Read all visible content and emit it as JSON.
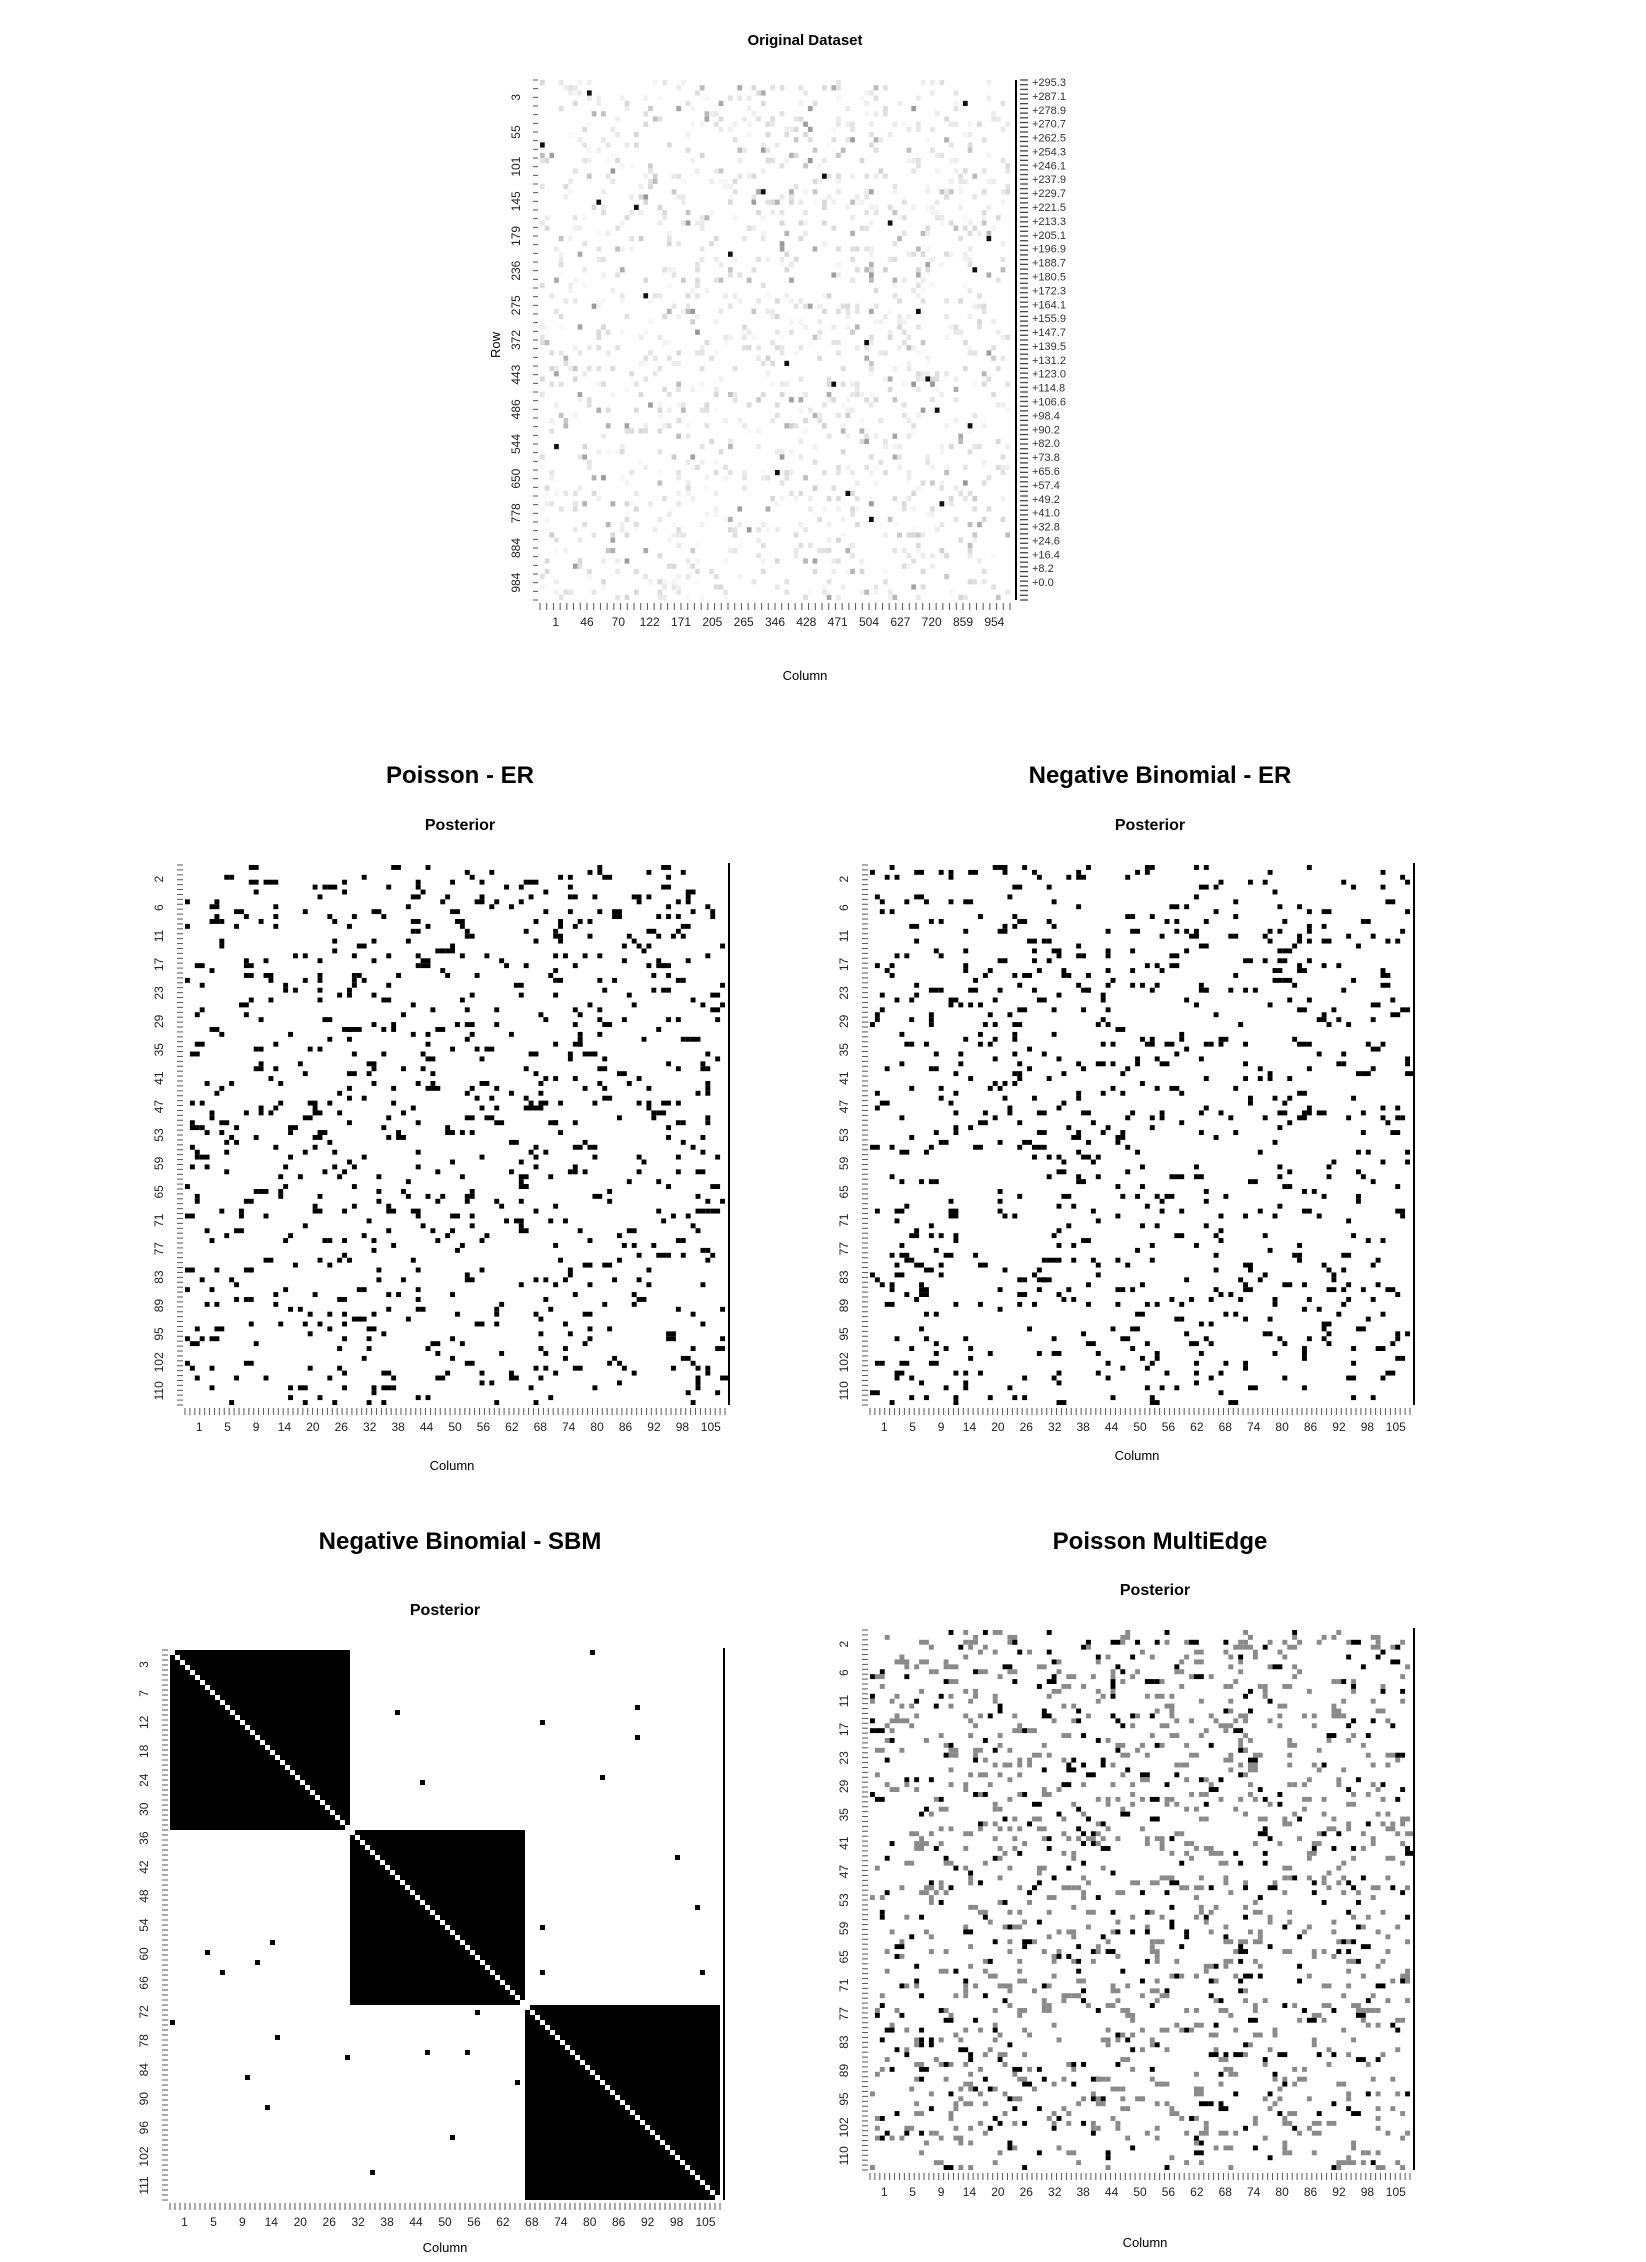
{
  "chart_data": [
    {
      "id": "original",
      "type": "heatmap",
      "title": "Original Dataset",
      "xlabel": "Column",
      "ylabel": "Row",
      "x_ticks": [
        "1",
        "46",
        "70",
        "122",
        "171",
        "205",
        "265",
        "346",
        "428",
        "471",
        "504",
        "627",
        "720",
        "859",
        "954"
      ],
      "y_ticks": [
        "3",
        "55",
        "101",
        "145",
        "179",
        "236",
        "275",
        "372",
        "443",
        "486",
        "544",
        "650",
        "778",
        "884",
        "984"
      ],
      "color_scale": [
        "+295.3",
        "+287.1",
        "+278.9",
        "+270.7",
        "+262.5",
        "+254.3",
        "+246.1",
        "+237.9",
        "+229.7",
        "+221.5",
        "+213.3",
        "+205.1",
        "+196.9",
        "+188.7",
        "+180.5",
        "+172.3",
        "+164.1",
        "+155.9",
        "+147.7",
        "+139.5",
        "+131.2",
        "+123.0",
        "+114.8",
        "+106.6",
        "+98.4",
        "+90.2",
        "+82.0",
        "+73.8",
        "+65.6",
        "+57.4",
        "+49.2",
        "+41.0",
        "+32.8",
        "+24.6",
        "+16.4",
        "+8.2",
        "+0.0"
      ],
      "value_range": [
        0,
        295.3
      ],
      "dark_cells": [
        [
          12,
          0
        ],
        [
          2,
          10
        ],
        [
          24,
          20
        ],
        [
          21,
          47
        ],
        [
          18,
          60
        ],
        [
          57,
          82
        ],
        [
          58,
          62
        ],
        [
          63,
          84
        ],
        [
          23,
          12
        ],
        [
          41,
          22
        ],
        [
          75,
          50
        ],
        [
          81,
          85
        ],
        [
          44,
          80
        ],
        [
          54,
          52
        ],
        [
          79,
          65
        ],
        [
          84,
          70
        ],
        [
          33,
          40
        ],
        [
          4,
          90
        ],
        [
          30,
          95
        ],
        [
          36,
          92
        ],
        [
          70,
          3
        ],
        [
          50,
          69
        ],
        [
          27,
          74
        ],
        [
          66,
          91
        ]
      ]
    },
    {
      "id": "poisson-er",
      "type": "heatmap",
      "title": "Poisson - ER",
      "subtitle": "Posterior",
      "xlabel": "Column",
      "x_ticks": [
        "1",
        "5",
        "9",
        "14",
        "20",
        "26",
        "32",
        "38",
        "44",
        "50",
        "56",
        "62",
        "68",
        "74",
        "80",
        "86",
        "92",
        "98",
        "105"
      ],
      "y_ticks": [
        "2",
        "6",
        "11",
        "17",
        "23",
        "29",
        "35",
        "41",
        "47",
        "53",
        "59",
        "65",
        "71",
        "77",
        "83",
        "89",
        "95",
        "102",
        "110"
      ],
      "density": 0.07
    },
    {
      "id": "negbin-er",
      "type": "heatmap",
      "title": "Negative Binomial - ER",
      "subtitle": "Posterior",
      "xlabel": "Column",
      "x_ticks": [
        "1",
        "5",
        "9",
        "14",
        "20",
        "26",
        "32",
        "38",
        "44",
        "50",
        "56",
        "62",
        "68",
        "74",
        "80",
        "86",
        "92",
        "98",
        "105"
      ],
      "y_ticks": [
        "2",
        "6",
        "11",
        "17",
        "23",
        "29",
        "35",
        "41",
        "47",
        "53",
        "59",
        "65",
        "71",
        "77",
        "83",
        "89",
        "95",
        "102",
        "110"
      ],
      "density": 0.065
    },
    {
      "id": "negbin-sbm",
      "type": "heatmap",
      "title": "Negative Binomial - SBM",
      "subtitle": "Posterior",
      "xlabel": "Column",
      "x_ticks": [
        "1",
        "5",
        "9",
        "14",
        "20",
        "26",
        "32",
        "38",
        "44",
        "50",
        "56",
        "62",
        "68",
        "74",
        "80",
        "86",
        "92",
        "98",
        "105"
      ],
      "y_ticks": [
        "3",
        "7",
        "12",
        "18",
        "24",
        "30",
        "36",
        "42",
        "48",
        "54",
        "60",
        "66",
        "72",
        "78",
        "84",
        "90",
        "96",
        "102",
        "111"
      ],
      "blocks": [
        [
          0,
          36
        ],
        [
          36,
          71
        ],
        [
          71,
          110
        ]
      ]
    },
    {
      "id": "poisson-multiedge",
      "type": "heatmap",
      "title": "Poisson MultiEdge",
      "subtitle": "Posterior",
      "xlabel": "Column",
      "x_ticks": [
        "1",
        "5",
        "9",
        "14",
        "20",
        "26",
        "32",
        "38",
        "44",
        "50",
        "56",
        "62",
        "68",
        "74",
        "80",
        "86",
        "92",
        "98",
        "105"
      ],
      "y_ticks": [
        "2",
        "6",
        "11",
        "17",
        "23",
        "29",
        "35",
        "41",
        "47",
        "53",
        "59",
        "65",
        "71",
        "77",
        "83",
        "89",
        "95",
        "102",
        "110"
      ],
      "density": 0.12
    }
  ]
}
